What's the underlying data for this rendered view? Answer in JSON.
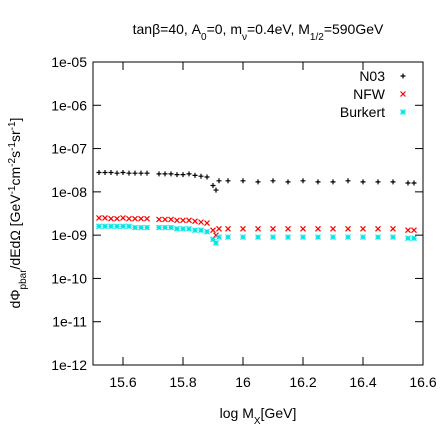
{
  "chart_data": {
    "type": "scatter",
    "title": [
      {
        "t": "tanβ=40, A",
        "s": "normal"
      },
      {
        "t": "0",
        "s": "sub"
      },
      {
        "t": "=0, m",
        "s": "normal"
      },
      {
        "t": "ν",
        "s": "sub"
      },
      {
        "t": "=0.4eV, M",
        "s": "normal"
      },
      {
        "t": "1/2",
        "s": "sub"
      },
      {
        "t": "=590GeV",
        "s": "normal"
      }
    ],
    "x_label": [
      {
        "t": "log M",
        "s": "normal"
      },
      {
        "t": "X",
        "s": "sub"
      },
      {
        "t": "[GeV]",
        "s": "normal"
      }
    ],
    "y_label": [
      {
        "t": "dΦ",
        "s": "normal"
      },
      {
        "t": "pbar",
        "s": "sub"
      },
      {
        "t": "/dEdΩ [GeV",
        "s": "normal"
      },
      {
        "t": "-1",
        "s": "super"
      },
      {
        "t": "cm",
        "s": "normal"
      },
      {
        "t": "-2",
        "s": "super"
      },
      {
        "t": "s",
        "s": "normal"
      },
      {
        "t": "-1",
        "s": "super"
      },
      {
        "t": "sr",
        "s": "normal"
      },
      {
        "t": "-1",
        "s": "super"
      },
      {
        "t": "]",
        "s": "normal"
      }
    ],
    "x": [
      15.52,
      15.54,
      15.56,
      15.58,
      15.6,
      15.62,
      15.64,
      15.66,
      15.68,
      15.72,
      15.74,
      15.76,
      15.78,
      15.8,
      15.82,
      15.84,
      15.86,
      15.88,
      15.9,
      15.91,
      15.92,
      15.95,
      16.0,
      16.05,
      16.1,
      16.15,
      16.2,
      16.25,
      16.3,
      16.35,
      16.4,
      16.45,
      16.5,
      16.55,
      16.57
    ],
    "series": [
      {
        "name": "N03",
        "color": "#000000",
        "marker": "plus",
        "values": [
          2.8e-08,
          2.8e-08,
          2.8e-08,
          2.7e-08,
          2.8e-08,
          2.7e-08,
          2.7e-08,
          2.7e-08,
          2.7e-08,
          2.6e-08,
          2.6e-08,
          2.6e-08,
          2.5e-08,
          2.5e-08,
          2.6e-08,
          2.4e-08,
          2.3e-08,
          2.2e-08,
          1.4e-08,
          1.1e-08,
          1.8e-08,
          1.8e-08,
          1.8e-08,
          1.7e-08,
          1.8e-08,
          1.7e-08,
          1.8e-08,
          1.7e-08,
          1.7e-08,
          1.8e-08,
          1.7e-08,
          1.7e-08,
          1.7e-08,
          1.6e-08,
          1.6e-08
        ]
      },
      {
        "name": "NFW",
        "color": "#ff0000",
        "marker": "cross",
        "values": [
          2.5e-09,
          2.5e-09,
          2.4e-09,
          2.4e-09,
          2.5e-09,
          2.4e-09,
          2.4e-09,
          2.4e-09,
          2.4e-09,
          2.3e-09,
          2.3e-09,
          2.3e-09,
          2.2e-09,
          2.2e-09,
          2.2e-09,
          2.1e-09,
          2e-09,
          1.9e-09,
          1.3e-09,
          1e-09,
          1.4e-09,
          1.4e-09,
          1.4e-09,
          1.4e-09,
          1.4e-09,
          1.4e-09,
          1.4e-09,
          1.4e-09,
          1.4e-09,
          1.4e-09,
          1.4e-09,
          1.4e-09,
          1.4e-09,
          1.3e-09,
          1.3e-09
        ]
      },
      {
        "name": "Burkert",
        "color": "#00e5e5",
        "marker": "star",
        "values": [
          1.6e-09,
          1.6e-09,
          1.6e-09,
          1.6e-09,
          1.6e-09,
          1.6e-09,
          1.5e-09,
          1.5e-09,
          1.5e-09,
          1.5e-09,
          1.5e-09,
          1.5e-09,
          1.4e-09,
          1.4e-09,
          1.4e-09,
          1.3e-09,
          1.3e-09,
          1.2e-09,
          8e-10,
          6.6e-10,
          9e-10,
          9e-10,
          9e-10,
          9e-10,
          9e-10,
          9e-10,
          9e-10,
          9e-10,
          9e-10,
          9e-10,
          9e-10,
          9e-10,
          9e-10,
          8.5e-10,
          8.5e-10
        ]
      }
    ],
    "xlim": [
      15.5,
      16.6
    ],
    "xticks": [
      15.6,
      15.8,
      16,
      16.2,
      16.4,
      16.6
    ],
    "ylim": [
      1e-12,
      1e-05
    ],
    "log_y": true,
    "yticks": [
      {
        "value": 1e-12,
        "label": "1e-12"
      },
      {
        "value": 1e-11,
        "label": "1e-11"
      },
      {
        "value": 1e-10,
        "label": "1e-10"
      },
      {
        "value": 1e-09,
        "label": "1e-09"
      },
      {
        "value": 1e-08,
        "label": "1e-08"
      },
      {
        "value": 1e-07,
        "label": "1e-07"
      },
      {
        "value": 1e-06,
        "label": "1e-06"
      },
      {
        "value": 1e-05,
        "label": "1e-05"
      }
    ],
    "legend": "top-right",
    "grid": false
  }
}
